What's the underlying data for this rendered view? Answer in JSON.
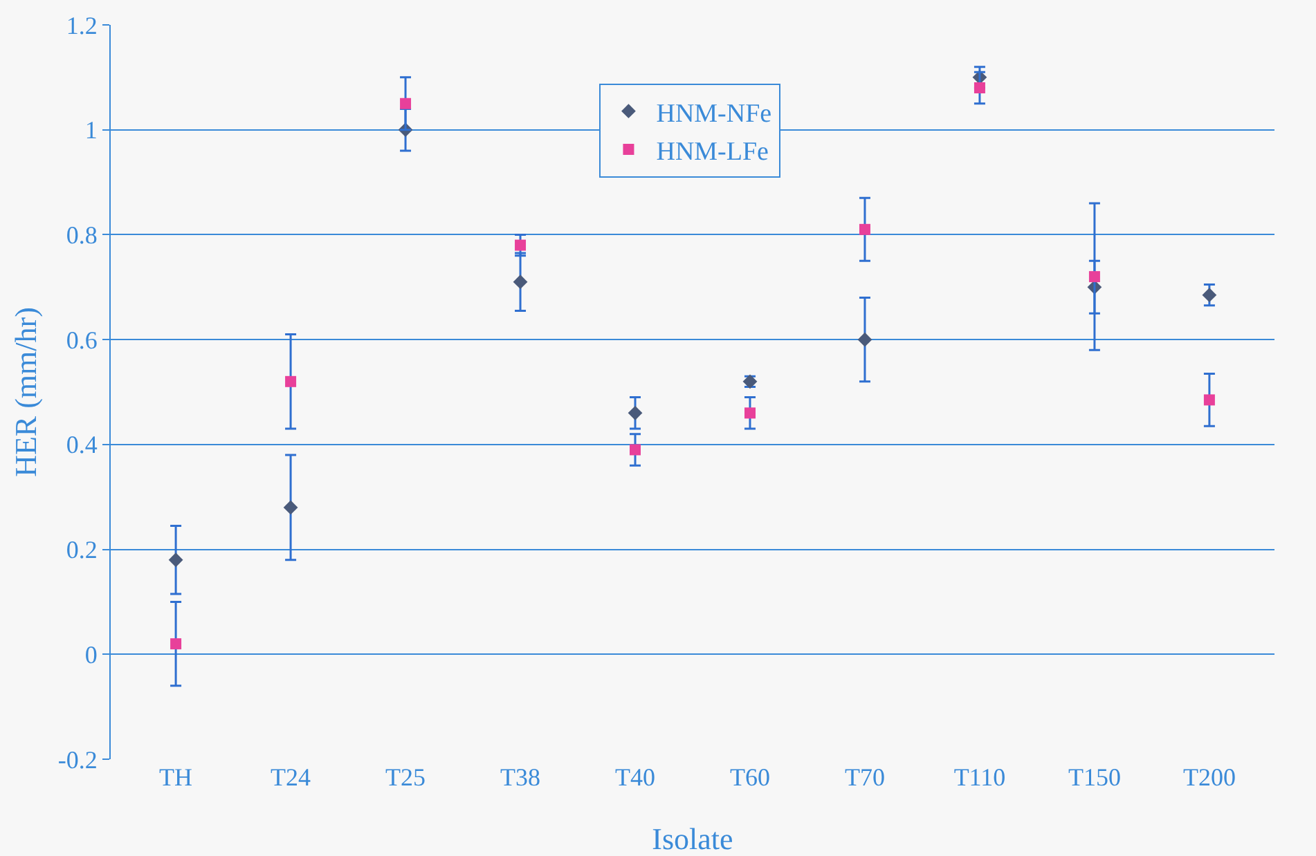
{
  "chart_data": {
    "type": "scatter",
    "xlabel": "Isolate",
    "ylabel": "HER (mm/hr)",
    "categories": [
      "TH",
      "T24",
      "T25",
      "T38",
      "T40",
      "T60",
      "T70",
      "T110",
      "T150",
      "T200"
    ],
    "series": [
      {
        "name": "HNM-NFe",
        "color": "#4a5a7a",
        "marker": "diamond",
        "values": [
          0.18,
          0.28,
          1.0,
          0.71,
          0.46,
          0.52,
          0.6,
          1.1,
          0.7,
          0.685
        ],
        "errors": [
          0.065,
          0.1,
          0.04,
          0.055,
          0.03,
          0.01,
          0.08,
          0.02,
          0.05,
          0.02
        ]
      },
      {
        "name": "HNM-LFe",
        "color": "#e8409a",
        "marker": "square",
        "values": [
          0.02,
          0.52,
          1.05,
          0.78,
          0.39,
          0.46,
          0.81,
          1.08,
          0.72,
          0.485
        ],
        "errors": [
          0.08,
          0.09,
          0.05,
          0.02,
          0.03,
          0.03,
          0.06,
          0.03,
          0.14,
          0.05
        ]
      }
    ],
    "ylim": [
      -0.2,
      1.2
    ],
    "yticks": [
      -0.2,
      0,
      0.2,
      0.4,
      0.6,
      0.8,
      1,
      1.2
    ],
    "grid": "y",
    "legend": "top"
  }
}
